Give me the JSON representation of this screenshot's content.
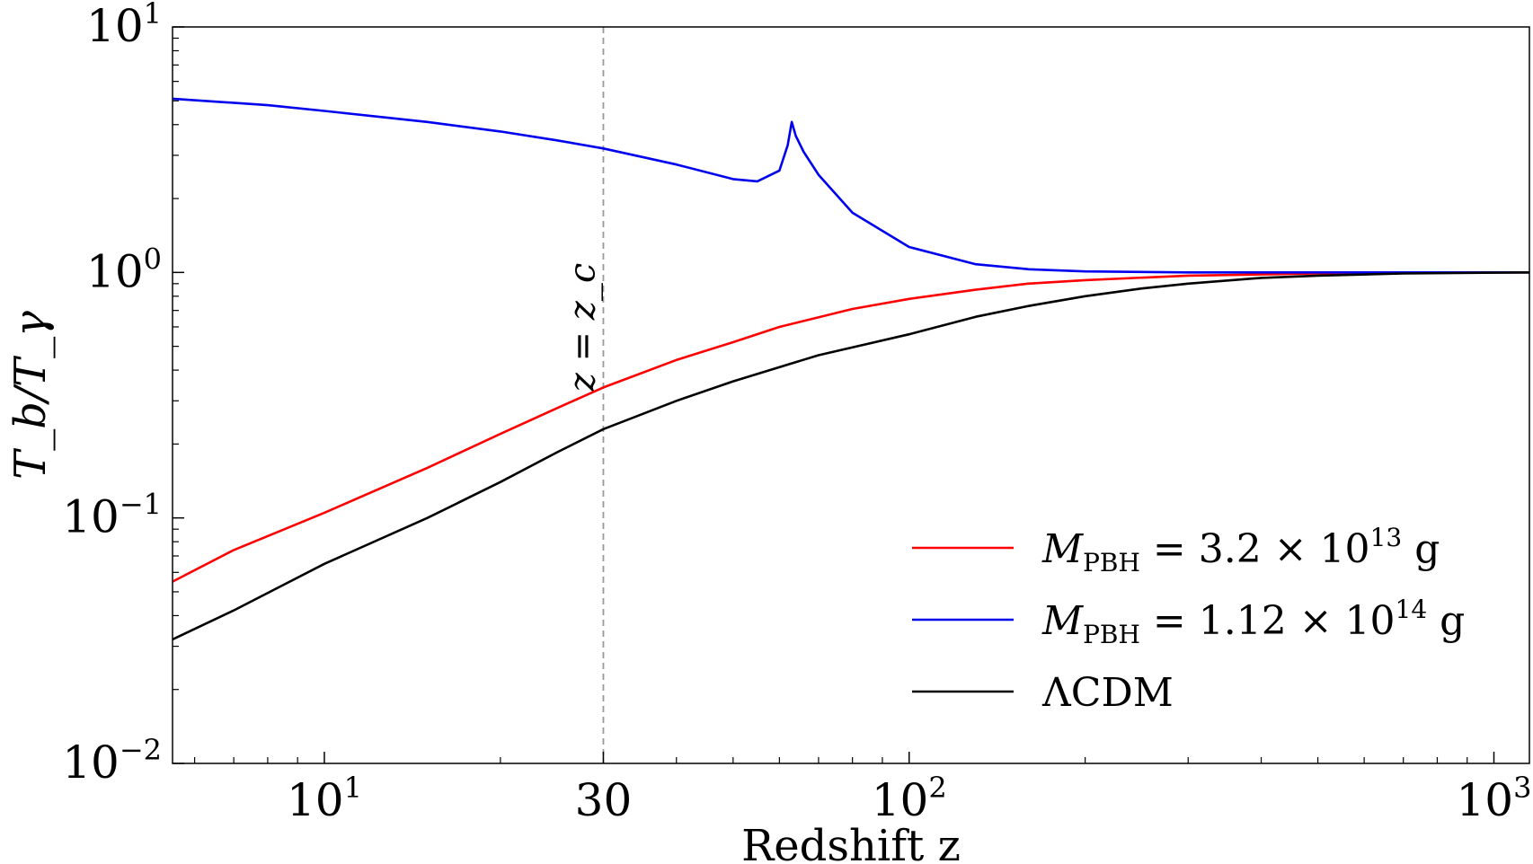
{
  "chart_data": {
    "type": "line",
    "xscale": "log",
    "yscale": "log",
    "xlim": [
      5.5,
      1150
    ],
    "ylim": [
      0.01,
      10
    ],
    "xlabel": "Redshift z",
    "ylabel": "T_b/T_γ",
    "xticks": [
      {
        "value": 10,
        "base": "10",
        "exp": "1"
      },
      {
        "value": 30,
        "base": "30",
        "exp": ""
      },
      {
        "value": 100,
        "base": "10",
        "exp": "2"
      },
      {
        "value": 1000,
        "base": "10",
        "exp": "3"
      }
    ],
    "yticks": [
      {
        "value": 0.01,
        "base": "10",
        "exp": "−2"
      },
      {
        "value": 0.1,
        "base": "10",
        "exp": "−1"
      },
      {
        "value": 1,
        "base": "10",
        "exp": "0"
      },
      {
        "value": 10,
        "base": "10",
        "exp": "1"
      }
    ],
    "vline": {
      "x": 30,
      "label": "z = z_c",
      "color": "#999999",
      "style": "dashed"
    },
    "legend": {
      "position": "lower-right"
    },
    "series": [
      {
        "name": "M_PBH = 3.2 × 10^13 g",
        "legend_text": {
          "sym": "M",
          "sub": "PBH",
          "rest": " = 3.2 × 10",
          "exp": "13",
          "unit": " g"
        },
        "color": "#ff0000",
        "x": [
          5.5,
          7,
          10,
          15,
          20,
          25,
          30,
          40,
          50,
          60,
          80,
          100,
          130,
          160,
          200,
          300,
          500,
          800,
          1150
        ],
        "y": [
          0.055,
          0.074,
          0.105,
          0.16,
          0.22,
          0.28,
          0.34,
          0.44,
          0.52,
          0.6,
          0.71,
          0.78,
          0.85,
          0.9,
          0.93,
          0.97,
          0.99,
          1.0,
          1.0
        ]
      },
      {
        "name": "M_PBH = 1.12 × 10^14 g",
        "legend_text": {
          "sym": "M",
          "sub": "PBH",
          "rest": " = 1.12 × 10",
          "exp": "14",
          "unit": " g"
        },
        "color": "#0000ee",
        "x": [
          5.5,
          8,
          10,
          15,
          20,
          25,
          30,
          40,
          50,
          55,
          60,
          62,
          63,
          64,
          66,
          70,
          80,
          100,
          130,
          160,
          200,
          300,
          500,
          800,
          1150
        ],
        "y": [
          5.1,
          4.8,
          4.55,
          4.1,
          3.75,
          3.45,
          3.2,
          2.75,
          2.4,
          2.35,
          2.6,
          3.3,
          4.1,
          3.6,
          3.1,
          2.5,
          1.75,
          1.27,
          1.08,
          1.03,
          1.01,
          1.0,
          1.0,
          1.0,
          1.0
        ]
      },
      {
        "name": "ΛCDM",
        "legend_text": {
          "sym": "",
          "sub": "",
          "rest": "ΛCDM",
          "exp": "",
          "unit": ""
        },
        "color": "#000000",
        "x": [
          5.5,
          7,
          10,
          15,
          20,
          25,
          30,
          40,
          50,
          70,
          100,
          130,
          160,
          200,
          250,
          300,
          400,
          500,
          700,
          1150
        ],
        "y": [
          0.032,
          0.042,
          0.065,
          0.1,
          0.14,
          0.185,
          0.23,
          0.3,
          0.36,
          0.46,
          0.56,
          0.66,
          0.73,
          0.8,
          0.86,
          0.9,
          0.95,
          0.97,
          0.99,
          1.0
        ]
      }
    ]
  }
}
